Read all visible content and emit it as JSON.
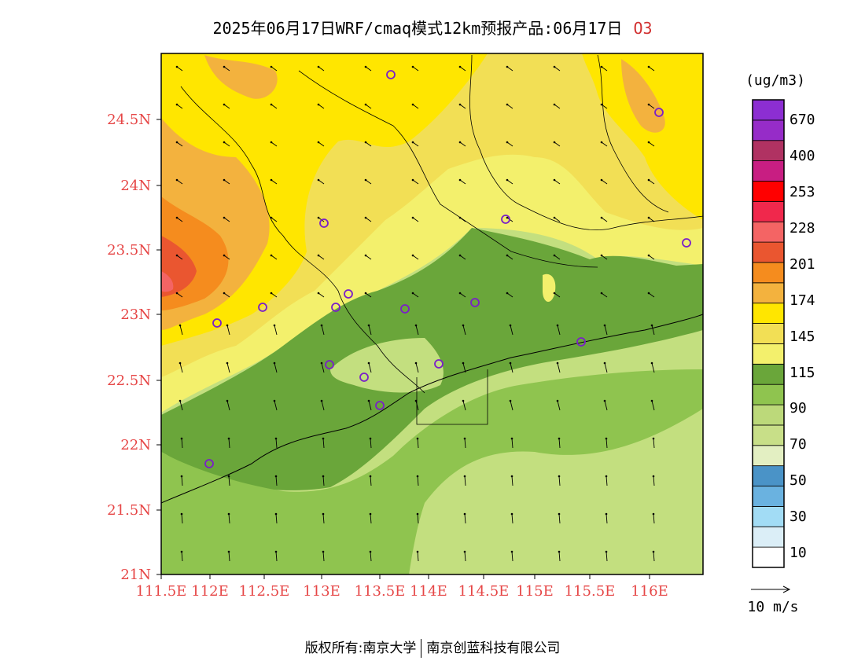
{
  "title": {
    "main": "2025年06月17日WRF/cmaq模式12km预报产品:06月17日",
    "species": "O3"
  },
  "map": {
    "lat_ticks": [
      "24.5N",
      "24N",
      "23.5N",
      "23N",
      "22.5N",
      "22N",
      "21.5N",
      "21N"
    ],
    "lon_ticks": [
      "111.5E",
      "112E",
      "112.5E",
      "113E",
      "113.5E",
      "114E",
      "114.5E",
      "115E",
      "115.5E",
      "116E"
    ],
    "tick_color": "#e64646"
  },
  "legend": {
    "unit": "(ug/m3)",
    "labels": [
      "670",
      "400",
      "253",
      "228",
      "201",
      "174",
      "145",
      "115",
      "90",
      "70",
      "50",
      "30",
      "10"
    ],
    "colors": [
      "#ffffff",
      "#dbeef7",
      "#a2dcf5",
      "#6ab2e0",
      "#4a93c7",
      "#e3efc2",
      "#c8df88",
      "#bcd97a",
      "#8fc44f",
      "#6aa63a",
      "#f3f06c",
      "#f2df55",
      "#ffe600",
      "#f3b23e",
      "#f58c1e",
      "#ea5630",
      "#f46464",
      "#f0284c",
      "#ff0000",
      "#c81e82",
      "#b03262",
      "#962cc8",
      "#8c2ed2"
    ],
    "wind_ref": "10 m/s"
  },
  "footer": {
    "left": "版权所有:南京大学",
    "right": "南京创蓝科技有限公司"
  },
  "colors": {
    "station_marker": "#7a1fc8",
    "axis": "#000000"
  }
}
